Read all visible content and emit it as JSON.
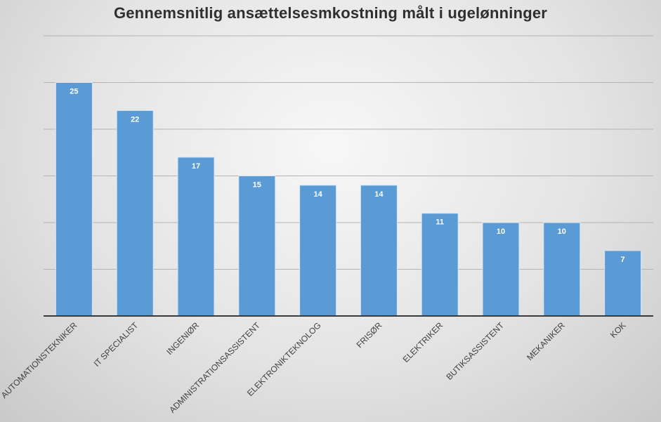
{
  "chart_data": {
    "type": "bar",
    "title": "Gennemsnitlig ansættelsesmkostning målt i ugelønninger",
    "xlabel": "",
    "ylabel": "",
    "ylim": [
      0,
      25
    ],
    "grid": true,
    "legend": "none",
    "categories": [
      "AUTOMATIONSTEKNIKER",
      "IT SPECIALIST",
      "INGENIØR",
      "ADMINISTRATIONSASSISTENT",
      "ELEKTRONIKTEKNOLOG",
      "FRISØR",
      "ELEKTRIKER",
      "BUTIKSASSISTENT",
      "MEKANIKER",
      "KOK"
    ],
    "values": [
      25,
      22,
      17,
      15,
      14,
      14,
      11,
      10,
      10,
      7
    ],
    "bar_color": "#5b9bd5",
    "label_color": "#ffffff"
  }
}
